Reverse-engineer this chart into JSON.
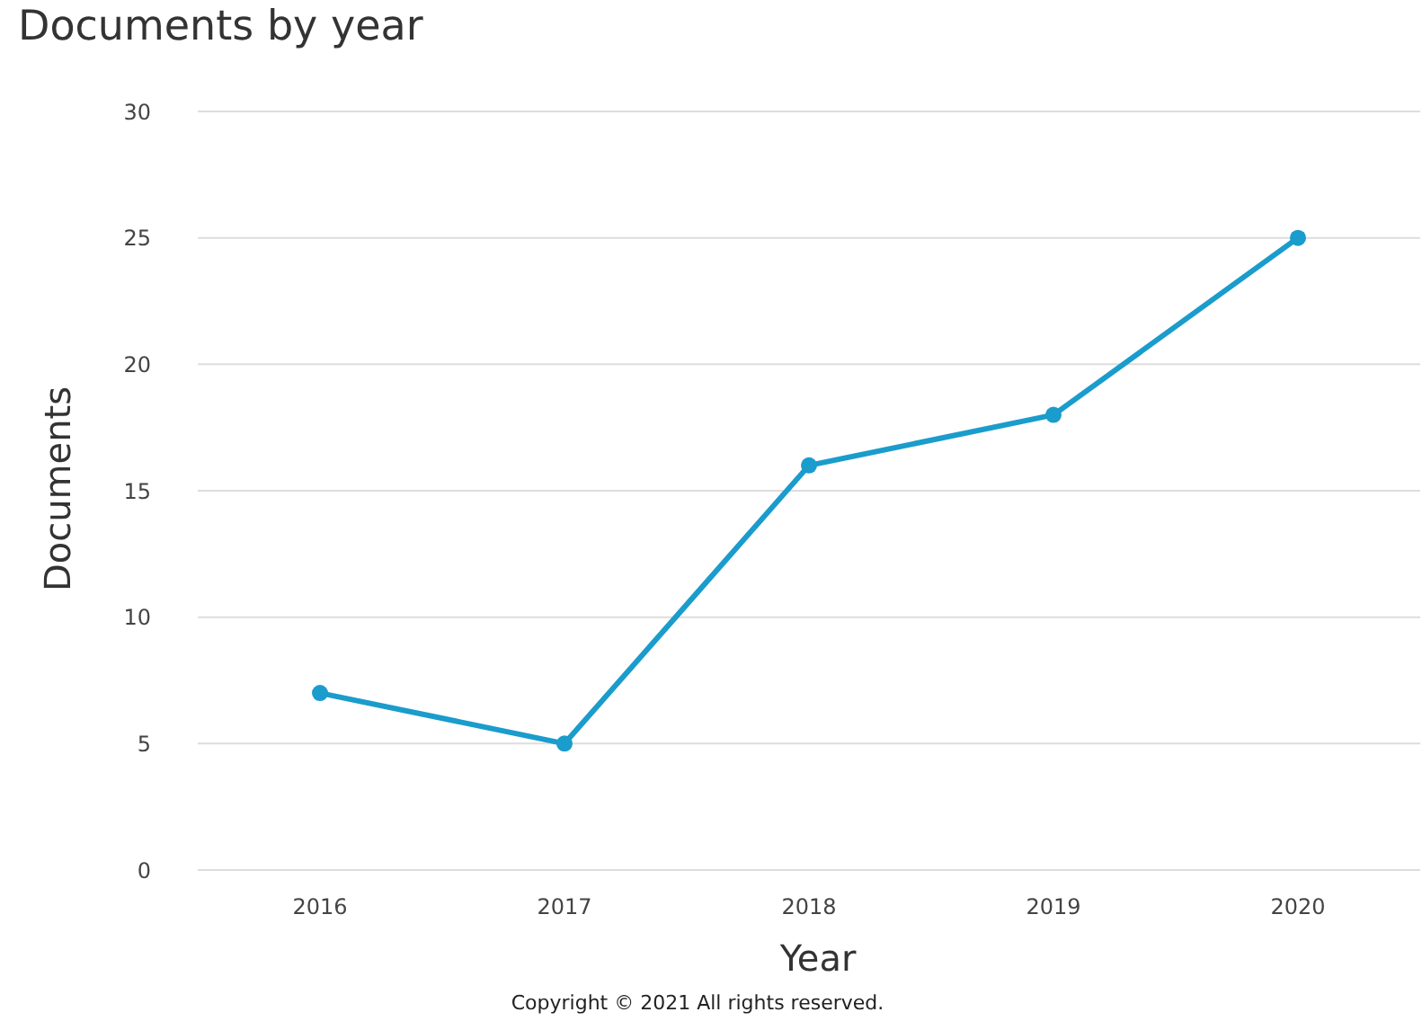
{
  "chart_data": {
    "type": "line",
    "title": "Documents by year",
    "xlabel": "Year",
    "ylabel": "Documents",
    "categories": [
      "2016",
      "2017",
      "2018",
      "2019",
      "2020"
    ],
    "series": [
      {
        "color": "#1a9ccc",
        "values": [
          7,
          5,
          16,
          18,
          25
        ]
      }
    ],
    "ylim": [
      0,
      30
    ],
    "yticks": [
      0,
      5,
      10,
      15,
      20,
      25,
      30
    ],
    "grid": "y",
    "marker": "circle",
    "line_style": "solid",
    "legend": false,
    "annotations": [
      "Copyright © 2021 All rights reserved."
    ]
  }
}
